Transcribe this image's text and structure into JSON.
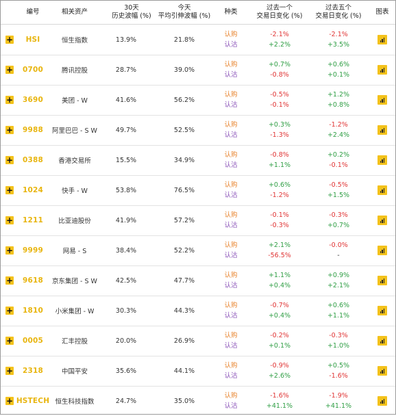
{
  "headers": {
    "code": "编号",
    "asset": "相关资产",
    "hist_vol": "30天\n历史波幅 (%)",
    "impl_vol": "今天\n平均引伸波幅 (%)",
    "type": "种类",
    "change_1d": "过去一个\n交易日变化 (%)",
    "change_5d": "过去五个\n交易日变化 (%)",
    "chart": "图表"
  },
  "labels": {
    "call": "认购",
    "put": "认沽"
  },
  "icons": {
    "expand": "plus-icon",
    "chart": "bar-chart-icon"
  },
  "colors": {
    "accent": "#f4c21b",
    "code": "#e8b50f",
    "call": "#e8842e",
    "put": "#8a52b8",
    "positive": "#2f9e44",
    "negative": "#e03535"
  },
  "rows": [
    {
      "code": "HSI",
      "asset": "恒生指数",
      "hist_vol": "13.9%",
      "impl_vol": "21.8%",
      "d1_call": "-2.1%",
      "d1_put": "+2.2%",
      "d5_call": "-2.1%",
      "d5_put": "+3.5%"
    },
    {
      "code": "0700",
      "asset": "腾讯控股",
      "hist_vol": "28.7%",
      "impl_vol": "39.0%",
      "d1_call": "+0.7%",
      "d1_put": "-0.8%",
      "d5_call": "+0.6%",
      "d5_put": "+0.1%"
    },
    {
      "code": "3690",
      "asset": "美团 - W",
      "hist_vol": "41.6%",
      "impl_vol": "56.2%",
      "d1_call": "-0.5%",
      "d1_put": "-0.1%",
      "d5_call": "+1.2%",
      "d5_put": "+0.8%"
    },
    {
      "code": "9988",
      "asset": "阿里巴巴 - S W",
      "hist_vol": "49.7%",
      "impl_vol": "52.5%",
      "d1_call": "+0.3%",
      "d1_put": "-1.3%",
      "d5_call": "-1.2%",
      "d5_put": "+2.4%"
    },
    {
      "code": "0388",
      "asset": "香港交易所",
      "hist_vol": "15.5%",
      "impl_vol": "34.9%",
      "d1_call": "-0.8%",
      "d1_put": "+1.1%",
      "d5_call": "+0.2%",
      "d5_put": "-0.1%"
    },
    {
      "code": "1024",
      "asset": "快手 - W",
      "hist_vol": "53.8%",
      "impl_vol": "76.5%",
      "d1_call": "+0.6%",
      "d1_put": "-1.2%",
      "d5_call": "-0.5%",
      "d5_put": "+1.5%"
    },
    {
      "code": "1211",
      "asset": "比亚迪股份",
      "hist_vol": "41.9%",
      "impl_vol": "57.2%",
      "d1_call": "-0.1%",
      "d1_put": "-0.3%",
      "d5_call": "-0.3%",
      "d5_put": "+0.7%"
    },
    {
      "code": "9999",
      "asset": "网易 - S",
      "hist_vol": "38.4%",
      "impl_vol": "52.2%",
      "d1_call": "+2.1%",
      "d1_put": "-56.5%",
      "d5_call": "-0.0%",
      "d5_put": "-"
    },
    {
      "code": "9618",
      "asset": "京东集团 - S W",
      "hist_vol": "42.5%",
      "impl_vol": "47.7%",
      "d1_call": "+1.1%",
      "d1_put": "+0.4%",
      "d5_call": "+0.9%",
      "d5_put": "+2.1%"
    },
    {
      "code": "1810",
      "asset": "小米集团 - W",
      "hist_vol": "30.3%",
      "impl_vol": "44.3%",
      "d1_call": "-0.7%",
      "d1_put": "+0.4%",
      "d5_call": "+0.6%",
      "d5_put": "+1.1%"
    },
    {
      "code": "0005",
      "asset": "汇丰控股",
      "hist_vol": "20.0%",
      "impl_vol": "26.9%",
      "d1_call": "-0.2%",
      "d1_put": "+0.1%",
      "d5_call": "-0.3%",
      "d5_put": "+1.0%"
    },
    {
      "code": "2318",
      "asset": "中国平安",
      "hist_vol": "35.6%",
      "impl_vol": "44.1%",
      "d1_call": "-0.9%",
      "d1_put": "+2.6%",
      "d5_call": "+0.5%",
      "d5_put": "-1.6%"
    },
    {
      "code": "HSTECH",
      "asset": "恒生科技指数",
      "hist_vol": "24.7%",
      "impl_vol": "35.0%",
      "d1_call": "-1.6%",
      "d1_put": "+41.1%",
      "d5_call": "-1.9%",
      "d5_put": "+41.1%"
    }
  ]
}
